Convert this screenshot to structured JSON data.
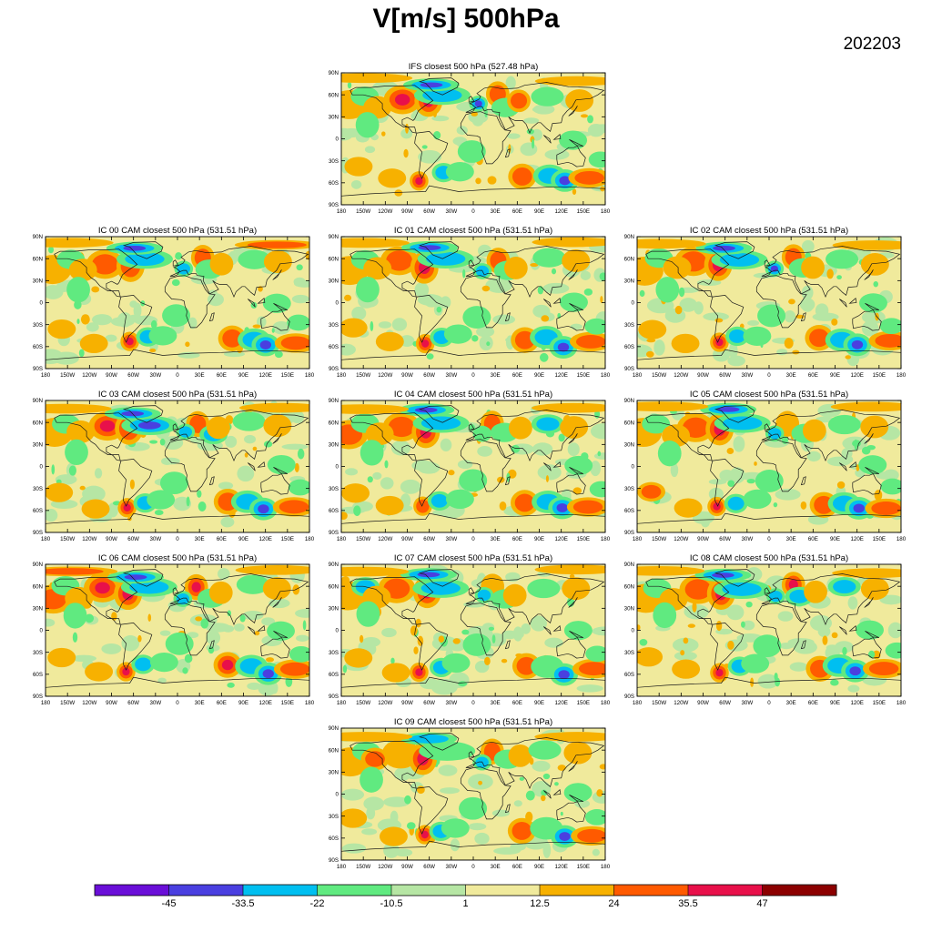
{
  "figure": {
    "title": "V[m/s] 500hPa",
    "date": "202203"
  },
  "chart_data": {
    "type": "heatmap",
    "title": "V[m/s] 500hPa",
    "date": "202203",
    "panels": [
      {
        "title": "IFS closest 500 hPa (527.48 hPa)"
      },
      {
        "title": "IC 00 CAM closest 500 hPa (531.51 hPa)"
      },
      {
        "title": "IC 01 CAM closest 500 hPa (531.51 hPa)"
      },
      {
        "title": "IC 02 CAM closest 500 hPa (531.51 hPa)"
      },
      {
        "title": "IC 03 CAM closest 500 hPa (531.51 hPa)"
      },
      {
        "title": "IC 04 CAM closest 500 hPa (531.51 hPa)"
      },
      {
        "title": "IC 05 CAM closest 500 hPa (531.51 hPa)"
      },
      {
        "title": "IC 06 CAM closest 500 hPa (531.51 hPa)"
      },
      {
        "title": "IC 07 CAM closest 500 hPa (531.51 hPa)"
      },
      {
        "title": "IC 08 CAM closest 500 hPa (531.51 hPa)"
      },
      {
        "title": "IC 09 CAM closest 500 hPa (531.51 hPa)"
      }
    ],
    "lat_ticks": [
      "90N",
      "60N",
      "30N",
      "0",
      "30S",
      "60S",
      "90S"
    ],
    "lon_ticks": [
      "180",
      "150W",
      "120W",
      "90W",
      "60W",
      "30W",
      "0",
      "30E",
      "60E",
      "90E",
      "120E",
      "150E",
      "180"
    ],
    "colorbar": {
      "labels": [
        "-45",
        "-33.5",
        "-22",
        "-10.5",
        "1",
        "12.5",
        "24",
        "35.5",
        "47"
      ],
      "colors": [
        "#6a0fd8",
        "#4a3fe0",
        "#00bff0",
        "#60ea80",
        "#b6e6a4",
        "#f0ea9c",
        "#f7b100",
        "#ff5a00",
        "#e8104a",
        "#8c0000"
      ]
    },
    "field_colors": {
      "background": "#f0ea9c",
      "weak_negative": "#b6e6a4",
      "moderate_negative": "#60ea80",
      "strong_negative": "#00bff0",
      "very_strong_negative": "#4a3fe0",
      "moderate_positive": "#f7b100",
      "strong_positive": "#ff5a00",
      "very_strong_positive": "#e8104a"
    }
  }
}
